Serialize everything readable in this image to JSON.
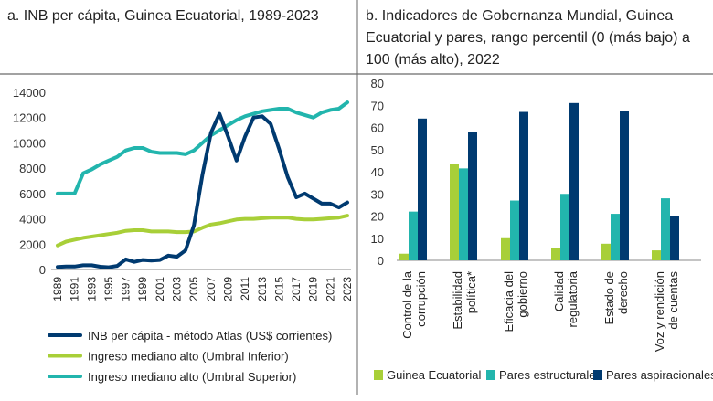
{
  "colors": {
    "inb": "#003a70",
    "lower": "#a8cf38",
    "upper": "#22b5ad",
    "green": "#a8cf38",
    "teal": "#22b5ad",
    "navy": "#003a70"
  },
  "chart_data": [
    {
      "type": "line",
      "title": "a. INB per cápita, Guinea Ecuatorial, 1989-2023",
      "ylim": [
        0,
        14000
      ],
      "yticks": [
        "0",
        "2000",
        "4000",
        "6000",
        "8000",
        "10000",
        "12000",
        "14000"
      ],
      "xticks": [
        "1989",
        "1991",
        "1993",
        "1995",
        "1997",
        "1999",
        "2001",
        "2003",
        "2005",
        "2007",
        "2009",
        "2011",
        "2013",
        "2015",
        "2017",
        "2019",
        "2021",
        "2023"
      ],
      "grid": false,
      "legend": "bottom",
      "x": [
        1989,
        1990,
        1991,
        1992,
        1993,
        1994,
        1995,
        1996,
        1997,
        1998,
        1999,
        2000,
        2001,
        2002,
        2003,
        2004,
        2005,
        2006,
        2007,
        2008,
        2009,
        2010,
        2011,
        2012,
        2013,
        2014,
        2015,
        2016,
        2017,
        2018,
        2019,
        2020,
        2021,
        2022,
        2023
      ],
      "series": [
        {
          "name": "INB per cápita - método Atlas (US$ corrientes)",
          "color": "#003a70",
          "values": [
            200,
            230,
            230,
            330,
            330,
            220,
            170,
            280,
            800,
            600,
            750,
            700,
            750,
            1100,
            1000,
            1500,
            3500,
            7500,
            10800,
            12300,
            10500,
            8600,
            10500,
            12000,
            12100,
            11500,
            9500,
            7300,
            5700,
            6000,
            5600,
            5200,
            5200,
            4900,
            5300
          ]
        },
        {
          "name": "Ingreso mediano alto (Umbral Inferior)",
          "color": "#a8cf38",
          "values": [
            1900,
            2200,
            2350,
            2500,
            2600,
            2700,
            2800,
            2900,
            3050,
            3100,
            3100,
            3000,
            3000,
            3000,
            2950,
            2950,
            3000,
            3300,
            3550,
            3650,
            3800,
            3950,
            4000,
            4000,
            4050,
            4100,
            4100,
            4100,
            4000,
            3950,
            3950,
            4000,
            4050,
            4100,
            4250
          ]
        },
        {
          "name": "Ingreso mediano alto (Umbral Superior)",
          "color": "#22b5ad",
          "values": [
            6000,
            6000,
            6000,
            7600,
            7900,
            8300,
            8600,
            8900,
            9400,
            9600,
            9600,
            9300,
            9200,
            9200,
            9200,
            9100,
            9400,
            10000,
            10600,
            11000,
            11400,
            11800,
            12100,
            12300,
            12500,
            12600,
            12700,
            12700,
            12400,
            12200,
            12000,
            12400,
            12600,
            12700,
            13200
          ]
        }
      ]
    },
    {
      "type": "bar",
      "title": "b. Indicadores de Gobernanza Mundial, Guinea Ecuatorial y pares, rango percentil (0 (más bajo) a 100 (más alto), 2022",
      "title_lines": [
        "b. Indicadores de Gobernanza Mundial, Guinea",
        "Ecuatorial y pares, rango percentil (0 (más bajo) a",
        "100 (más alto), 2022"
      ],
      "ylim": [
        0,
        80
      ],
      "yticks": [
        "0",
        "10",
        "20",
        "30",
        "40",
        "50",
        "60",
        "70",
        "80"
      ],
      "grid": false,
      "legend": "bottom",
      "categories": [
        [
          "Control de la",
          "corrupción"
        ],
        [
          "Estabilidad",
          "política*"
        ],
        [
          "Eficacia del",
          "gobierno"
        ],
        [
          "Calidad",
          "regulatoria"
        ],
        [
          "Estado de",
          "derecho"
        ],
        [
          "Voz y rendición",
          "de cuentas"
        ]
      ],
      "series": [
        {
          "name": "Guinea Ecuatorial",
          "color": "#a8cf38",
          "values": [
            3,
            43.5,
            10,
            5.5,
            7.5,
            4.5
          ]
        },
        {
          "name": "Pares estructurales",
          "color": "#22b5ad",
          "values": [
            22,
            41.5,
            27,
            30,
            21,
            28
          ]
        },
        {
          "name": "Pares aspiracionales",
          "color": "#003a70",
          "values": [
            64,
            58,
            67,
            71,
            67.5,
            20
          ]
        }
      ]
    }
  ]
}
